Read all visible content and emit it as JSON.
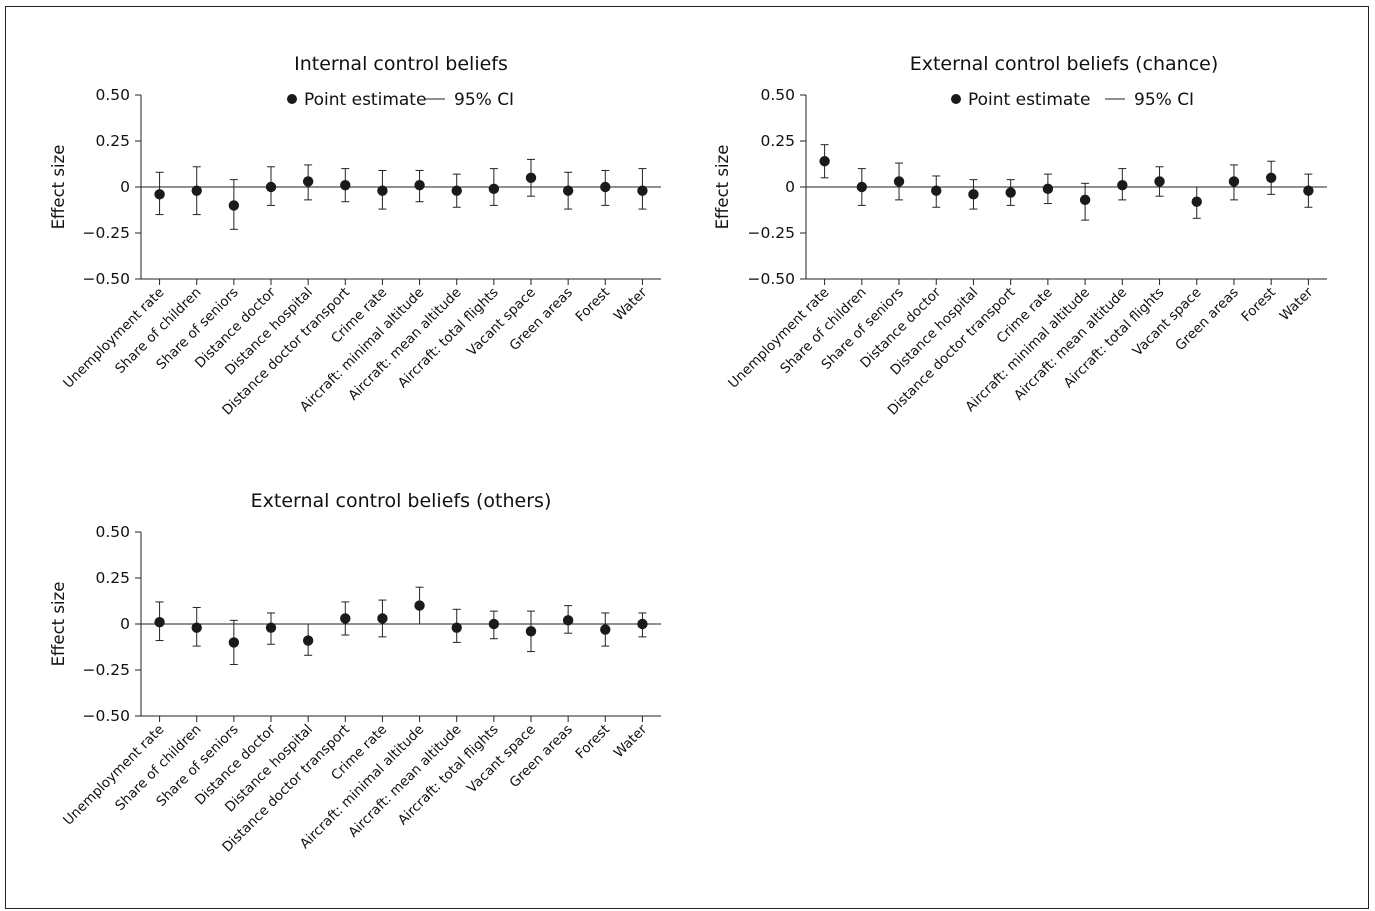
{
  "colors": {
    "axis": "#222222",
    "point": "#1a1a1a",
    "background": "#ffffff"
  },
  "legend": {
    "point_label": "Point estimate",
    "ci_label": "95% CI"
  },
  "categories": [
    "Unemployment rate",
    "Share of children",
    "Share of seniors",
    "Distance doctor",
    "Distance hospital",
    "Distance doctor transport",
    "Crime rate",
    "Aircraft: minimal altitude",
    "Aircraft: mean altitude",
    "Aircraft: total flights",
    "Vacant space",
    "Green areas",
    "Forest",
    "Water"
  ],
  "y_ticks": [
    "0.50",
    "0.25",
    "0",
    "−0.25",
    "−0.50"
  ],
  "ylabel": "Effect size",
  "chart_data": [
    {
      "type": "scatter",
      "title": "Internal control beliefs",
      "ylabel": "Effect size",
      "ylim": [
        -0.5,
        0.5
      ],
      "legend": "top",
      "estimates": [
        -0.04,
        -0.02,
        -0.1,
        0.0,
        0.03,
        0.01,
        -0.02,
        0.01,
        -0.02,
        -0.01,
        0.05,
        -0.02,
        0.0,
        -0.02
      ],
      "ci_low": [
        -0.15,
        -0.15,
        -0.23,
        -0.1,
        -0.07,
        -0.08,
        -0.12,
        -0.08,
        -0.11,
        -0.1,
        -0.05,
        -0.12,
        -0.1,
        -0.12
      ],
      "ci_high": [
        0.08,
        0.11,
        0.04,
        0.11,
        0.12,
        0.1,
        0.09,
        0.09,
        0.07,
        0.1,
        0.15,
        0.08,
        0.09,
        0.1
      ]
    },
    {
      "type": "scatter",
      "title": "External control beliefs (chance)",
      "ylabel": "Effect size",
      "ylim": [
        -0.5,
        0.5
      ],
      "legend": "top",
      "estimates": [
        0.14,
        0.0,
        0.03,
        -0.02,
        -0.04,
        -0.03,
        -0.01,
        -0.07,
        0.01,
        0.03,
        -0.08,
        0.03,
        0.05,
        -0.02
      ],
      "ci_low": [
        0.05,
        -0.1,
        -0.07,
        -0.11,
        -0.12,
        -0.1,
        -0.09,
        -0.18,
        -0.07,
        -0.05,
        -0.17,
        -0.07,
        -0.04,
        -0.11
      ],
      "ci_high": [
        0.23,
        0.1,
        0.13,
        0.06,
        0.04,
        0.04,
        0.07,
        0.02,
        0.1,
        0.11,
        0.0,
        0.12,
        0.14,
        0.07
      ]
    },
    {
      "type": "scatter",
      "title": "External control beliefs (others)",
      "ylabel": "Effect size",
      "ylim": [
        -0.5,
        0.5
      ],
      "legend": "none",
      "estimates": [
        0.01,
        -0.02,
        -0.1,
        -0.02,
        -0.09,
        0.03,
        0.03,
        0.1,
        -0.02,
        0.0,
        -0.04,
        0.02,
        -0.03,
        0.0
      ],
      "ci_low": [
        -0.09,
        -0.12,
        -0.22,
        -0.11,
        -0.17,
        -0.06,
        -0.07,
        0.0,
        -0.1,
        -0.08,
        -0.15,
        -0.05,
        -0.12,
        -0.07
      ],
      "ci_high": [
        0.12,
        0.09,
        0.02,
        0.06,
        0.0,
        0.12,
        0.13,
        0.2,
        0.08,
        0.07,
        0.07,
        0.1,
        0.06,
        0.06
      ]
    }
  ]
}
